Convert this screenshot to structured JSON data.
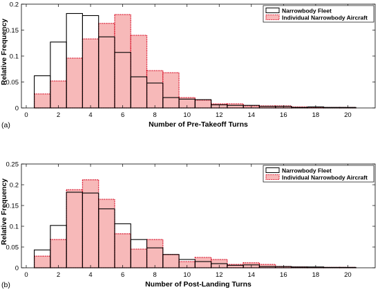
{
  "chart_data": [
    {
      "type": "bar",
      "panel_label": "(a)",
      "xlabel": "Number of Pre-Takeoff Turns",
      "ylabel": "Relative Frequency",
      "xlim": [
        -0.3,
        21.7
      ],
      "ylim": [
        0,
        0.2
      ],
      "xticks": [
        "0",
        "2",
        "4",
        "6",
        "8",
        "10",
        "12",
        "14",
        "16",
        "18",
        "20"
      ],
      "yticks": [
        "0",
        "0.05",
        "0.1",
        "0.15",
        "0.2"
      ],
      "grid": false,
      "legend_position": "top-right",
      "x": [
        1,
        2,
        3,
        4,
        5,
        6,
        7,
        8,
        9,
        10,
        11,
        12,
        13,
        14,
        15,
        16,
        17,
        18,
        19,
        20
      ],
      "series": [
        {
          "name": "Narrowbody Fleet",
          "style": "black-outline",
          "values": [
            0.062,
            0.127,
            0.182,
            0.178,
            0.137,
            0.107,
            0.06,
            0.048,
            0.02,
            0.017,
            0.016,
            0.006,
            0.005,
            0.005,
            0.003,
            0.003,
            0.001,
            0.002,
            0.001,
            0.001
          ]
        },
        {
          "name": "Individual Narrowbody Aircraft",
          "style": "red-dotted-filled",
          "values": [
            0.027,
            0.052,
            0.096,
            0.133,
            0.163,
            0.18,
            0.14,
            0.072,
            0.068,
            0.02,
            0.015,
            0.008,
            0.008,
            0.004,
            0.004,
            0.004,
            0.002,
            0.001,
            0.001,
            0.001
          ]
        }
      ]
    },
    {
      "type": "bar",
      "panel_label": "(b)",
      "xlabel": "Number of Post-Landing Turns",
      "ylabel": "Relative Frequency",
      "xlim": [
        -0.3,
        21.7
      ],
      "ylim": [
        0,
        0.25
      ],
      "xticks": [
        "0",
        "2",
        "4",
        "6",
        "8",
        "10",
        "12",
        "14",
        "16",
        "18",
        "20"
      ],
      "yticks": [
        "0",
        "0.05",
        "0.1",
        "0.15",
        "0.2",
        "0.25"
      ],
      "grid": false,
      "legend_position": "top-right",
      "x": [
        1,
        2,
        3,
        4,
        5,
        6,
        7,
        8,
        9,
        10,
        11,
        12,
        13,
        14,
        15,
        16,
        17,
        18,
        19,
        20
      ],
      "series": [
        {
          "name": "Narrowbody Fleet",
          "style": "black-outline",
          "values": [
            0.043,
            0.102,
            0.182,
            0.18,
            0.142,
            0.106,
            0.068,
            0.048,
            0.032,
            0.02,
            0.015,
            0.01,
            0.006,
            0.007,
            0.003,
            0.003,
            0.002,
            0.002,
            0.001,
            0.001
          ]
        },
        {
          "name": "Individual Narrowbody Aircraft",
          "style": "red-dotted-filled",
          "values": [
            0.028,
            0.068,
            0.188,
            0.212,
            0.165,
            0.082,
            0.045,
            0.068,
            0.032,
            0.015,
            0.025,
            0.02,
            0.008,
            0.012,
            0.008,
            0.003,
            0.002,
            0.001,
            0.001,
            0.001
          ]
        }
      ]
    }
  ],
  "colors": {
    "fleet_edge": "#000000",
    "individual_fill": "#f7b9b9",
    "individual_edge": "#d4001a"
  }
}
